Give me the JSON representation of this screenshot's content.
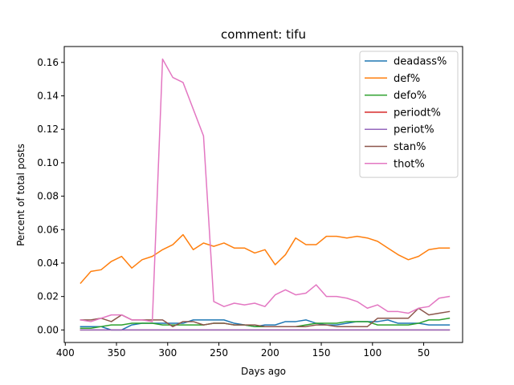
{
  "chart_data": {
    "type": "line",
    "title": "comment: tifu",
    "xlabel": "Days ago",
    "ylabel": "Percent of total posts",
    "xlim": [
      401,
      12
    ],
    "ylim": [
      -0.0075,
      0.1695
    ],
    "x_ticks": [
      400,
      350,
      300,
      250,
      200,
      150,
      100,
      50
    ],
    "y_ticks": [
      0.0,
      0.02,
      0.04,
      0.06,
      0.08,
      0.1,
      0.12,
      0.14,
      0.16
    ],
    "y_tick_labels": [
      "0.00",
      "0.02",
      "0.04",
      "0.06",
      "0.08",
      "0.10",
      "0.12",
      "0.14",
      "0.16"
    ],
    "legend_position": "top-right",
    "grid": false,
    "x": [
      385,
      375,
      365,
      355,
      345,
      335,
      325,
      315,
      305,
      295,
      285,
      275,
      265,
      255,
      245,
      235,
      225,
      215,
      205,
      195,
      185,
      175,
      165,
      155,
      145,
      135,
      125,
      115,
      105,
      95,
      85,
      75,
      65,
      55,
      45,
      35,
      25
    ],
    "series": [
      {
        "name": "deadass%",
        "color": "#1f77b4",
        "values": [
          0.002,
          0.002,
          0.002,
          0.0,
          0.0,
          0.003,
          0.004,
          0.004,
          0.004,
          0.004,
          0.004,
          0.006,
          0.006,
          0.006,
          0.006,
          0.004,
          0.003,
          0.002,
          0.003,
          0.003,
          0.005,
          0.005,
          0.006,
          0.004,
          0.003,
          0.003,
          0.004,
          0.005,
          0.005,
          0.005,
          0.006,
          0.004,
          0.004,
          0.004,
          0.003,
          0.003,
          0.003
        ]
      },
      {
        "name": "def%",
        "color": "#ff7f0e",
        "values": [
          0.028,
          0.035,
          0.036,
          0.041,
          0.044,
          0.037,
          0.042,
          0.044,
          0.048,
          0.051,
          0.057,
          0.048,
          0.052,
          0.05,
          0.052,
          0.049,
          0.049,
          0.046,
          0.048,
          0.039,
          0.045,
          0.055,
          0.051,
          0.051,
          0.056,
          0.056,
          0.055,
          0.056,
          0.055,
          0.053,
          0.049,
          0.045,
          0.042,
          0.044,
          0.048,
          0.049,
          0.049
        ]
      },
      {
        "name": "defo%",
        "color": "#2ca02c",
        "values": [
          0.001,
          0.001,
          0.002,
          0.003,
          0.003,
          0.004,
          0.004,
          0.004,
          0.003,
          0.003,
          0.003,
          0.003,
          0.003,
          0.004,
          0.004,
          0.003,
          0.003,
          0.002,
          0.002,
          0.002,
          0.002,
          0.002,
          0.003,
          0.004,
          0.004,
          0.004,
          0.005,
          0.005,
          0.005,
          0.003,
          0.003,
          0.003,
          0.003,
          0.004,
          0.006,
          0.006,
          0.007
        ]
      },
      {
        "name": "periodt%",
        "color": "#d62728",
        "values": [
          0.0,
          0.0,
          0.0,
          0.0,
          0.0,
          0.0,
          0.0,
          0.0,
          0.0,
          0.0,
          0.0,
          0.0,
          0.0,
          0.0,
          0.0,
          0.0,
          0.0,
          0.0,
          0.0,
          0.0,
          0.0,
          0.0,
          0.0,
          0.0,
          0.0,
          0.0,
          0.0,
          0.0,
          0.0,
          0.0,
          0.0,
          0.0,
          0.0,
          0.0,
          0.0,
          0.0,
          0.0
        ]
      },
      {
        "name": "periot%",
        "color": "#9467bd",
        "values": [
          0.0,
          0.0,
          0.0,
          0.0,
          0.0,
          0.0,
          0.0,
          0.0,
          0.0,
          0.0,
          0.0,
          0.0,
          0.0,
          0.0,
          0.0,
          0.0,
          0.0,
          0.0,
          0.0,
          0.0,
          0.0,
          0.0,
          0.0,
          0.0,
          0.0,
          0.0,
          0.0,
          0.0,
          0.0,
          0.0,
          0.0,
          0.0,
          0.0,
          0.0,
          0.0,
          0.0,
          0.0
        ]
      },
      {
        "name": "stan%",
        "color": "#8c564b",
        "values": [
          0.006,
          0.006,
          0.007,
          0.005,
          0.009,
          0.006,
          0.006,
          0.006,
          0.006,
          0.002,
          0.005,
          0.005,
          0.003,
          0.004,
          0.004,
          0.003,
          0.003,
          0.003,
          0.002,
          0.002,
          0.002,
          0.002,
          0.002,
          0.003,
          0.003,
          0.002,
          0.002,
          0.002,
          0.002,
          0.007,
          0.007,
          0.007,
          0.007,
          0.013,
          0.009,
          0.01,
          0.011
        ]
      },
      {
        "name": "thot%",
        "color": "#e377c2",
        "values": [
          0.006,
          0.005,
          0.007,
          0.009,
          0.009,
          0.006,
          0.006,
          0.005,
          0.162,
          0.151,
          0.148,
          0.132,
          0.116,
          0.017,
          0.014,
          0.016,
          0.015,
          0.016,
          0.014,
          0.021,
          0.024,
          0.021,
          0.022,
          0.027,
          0.02,
          0.02,
          0.019,
          0.017,
          0.013,
          0.015,
          0.011,
          0.011,
          0.01,
          0.013,
          0.014,
          0.019,
          0.02
        ]
      }
    ]
  }
}
